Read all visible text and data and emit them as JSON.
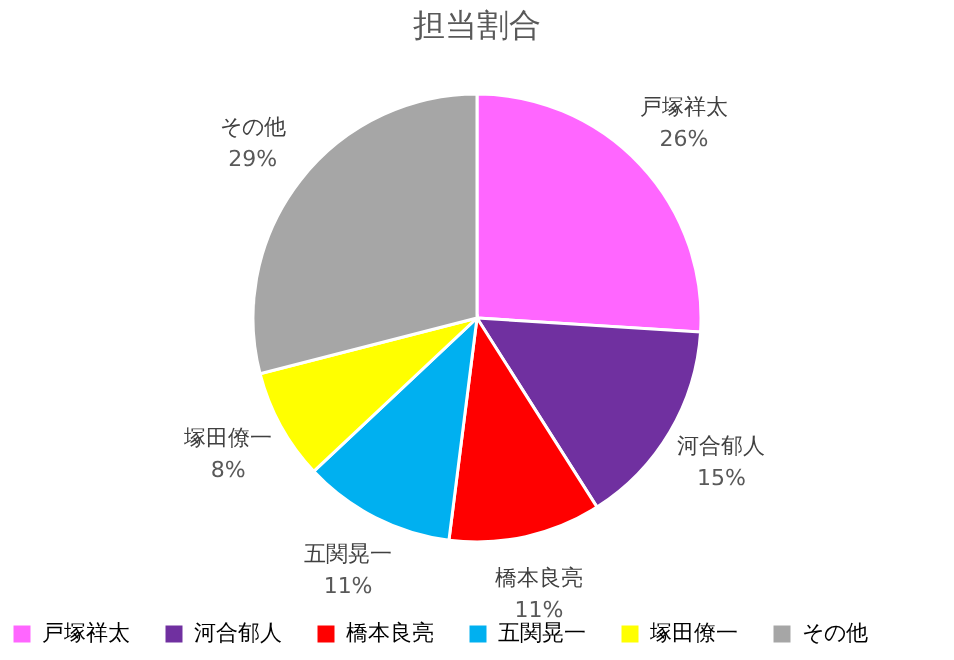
{
  "chart_data": {
    "type": "pie",
    "title": "担当割合",
    "categories": [
      "戸塚祥太",
      "河合郁人",
      "橋本良亮",
      "五関晃一",
      "塚田僚一",
      "その他"
    ],
    "values": [
      26,
      15,
      11,
      11,
      8,
      29
    ],
    "colors": [
      "#ff66ff",
      "#7030a0",
      "#ff0000",
      "#00b0f0",
      "#ffff00",
      "#a6a6a6"
    ],
    "value_labels": [
      "26%",
      "15%",
      "11%",
      "11%",
      "8%",
      "29%"
    ],
    "legend": "bottom"
  }
}
